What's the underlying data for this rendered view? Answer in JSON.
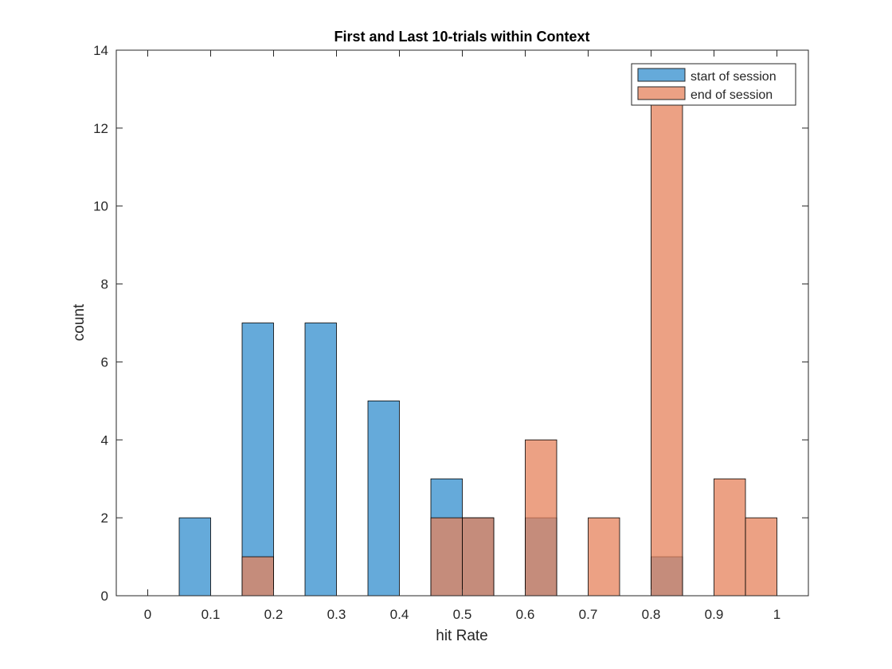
{
  "chart_data": {
    "type": "bar",
    "title": "First and Last 10-trials within Context",
    "xlabel": "hit Rate",
    "ylabel": "count",
    "xlim": [
      -0.05,
      1.05
    ],
    "ylim": [
      0,
      14
    ],
    "xticks": [
      0,
      0.1,
      0.2,
      0.3,
      0.4,
      0.5,
      0.6,
      0.7,
      0.8,
      0.9,
      1
    ],
    "xtick_labels": [
      "0",
      "0.1",
      "0.2",
      "0.3",
      "0.4",
      "0.5",
      "0.6",
      "0.7",
      "0.8",
      "0.9",
      "1"
    ],
    "yticks": [
      0,
      2,
      4,
      6,
      8,
      10,
      12,
      14
    ],
    "ytick_labels": [
      "0",
      "2",
      "4",
      "6",
      "8",
      "10",
      "12",
      "14"
    ],
    "bin_width": 0.05,
    "grid": false,
    "legend_position": "top-right",
    "series": [
      {
        "name": "start of session",
        "color": "#4a9bd4",
        "bins": [
          {
            "x0": 0.05,
            "x1": 0.1,
            "value": 2
          },
          {
            "x0": 0.15,
            "x1": 0.2,
            "value": 7
          },
          {
            "x0": 0.25,
            "x1": 0.3,
            "value": 7
          },
          {
            "x0": 0.35,
            "x1": 0.4,
            "value": 5
          },
          {
            "x0": 0.45,
            "x1": 0.5,
            "value": 3
          },
          {
            "x0": 0.5,
            "x1": 0.55,
            "value": 2
          },
          {
            "x0": 0.6,
            "x1": 0.65,
            "value": 2
          },
          {
            "x0": 0.8,
            "x1": 0.85,
            "value": 1
          }
        ]
      },
      {
        "name": "end of session",
        "color": "#e5825b",
        "bins": [
          {
            "x0": 0.15,
            "x1": 0.2,
            "value": 1
          },
          {
            "x0": 0.45,
            "x1": 0.5,
            "value": 2
          },
          {
            "x0": 0.5,
            "x1": 0.55,
            "value": 2
          },
          {
            "x0": 0.6,
            "x1": 0.65,
            "value": 4
          },
          {
            "x0": 0.7,
            "x1": 0.75,
            "value": 2
          },
          {
            "x0": 0.8,
            "x1": 0.85,
            "value": 13
          },
          {
            "x0": 0.9,
            "x1": 0.95,
            "value": 3
          },
          {
            "x0": 0.95,
            "x1": 1.0,
            "value": 2
          }
        ]
      }
    ]
  }
}
